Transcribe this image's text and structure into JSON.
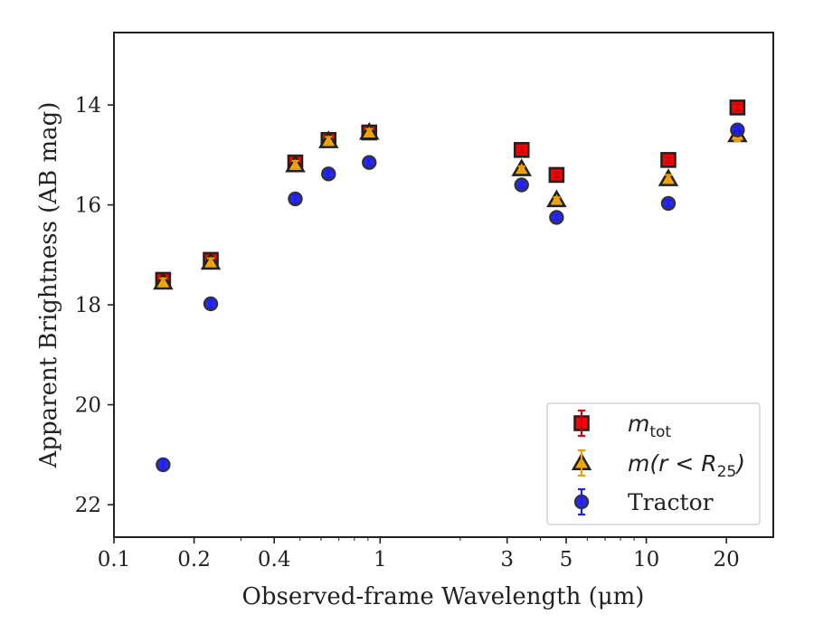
{
  "chart_data": {
    "type": "scatter",
    "xlabel": "Observed-frame Wavelength (μm)",
    "ylabel": "Apparent Brightness (AB mag)",
    "xscale": "log",
    "xlim": [
      0.1,
      30
    ],
    "ylim": [
      22.65,
      12.55
    ],
    "y_inverted": true,
    "x_ticks": [
      0.1,
      0.2,
      0.4,
      1,
      3,
      5,
      10,
      20
    ],
    "x_tick_labels": [
      "0.1",
      "0.2",
      "0.4",
      "1",
      "3",
      "5",
      "10",
      "20"
    ],
    "y_ticks": [
      14,
      16,
      18,
      20,
      22
    ],
    "y_tick_labels": [
      "14",
      "16",
      "18",
      "20",
      "22"
    ],
    "grid": false,
    "legend_position": "lower-right",
    "series": [
      {
        "name": "m_tot",
        "legend": {
          "main": "m",
          "sub": "tot"
        },
        "marker": "square",
        "color": "#ff0000",
        "edge_color": "#222222",
        "error_color": "#cc0000",
        "x": [
          0.153,
          0.231,
          0.48,
          0.64,
          0.91,
          3.4,
          4.6,
          12.1,
          22.0
        ],
        "y": [
          17.5,
          17.1,
          15.15,
          14.7,
          14.55,
          14.9,
          15.4,
          15.1,
          14.05
        ],
        "yerr": [
          0.08,
          0.08,
          0.08,
          0.08,
          0.07,
          0.05,
          0.05,
          0.05,
          0.07
        ]
      },
      {
        "name": "m(r < R_25)",
        "legend": {
          "main": "m(r < R",
          "sub": "25",
          "tail": ")"
        },
        "marker": "triangle",
        "color": "#ffa500",
        "edge_color": "#222222",
        "error_color": "#e5a000",
        "x": [
          0.153,
          0.231,
          0.48,
          0.64,
          0.91,
          3.4,
          4.6,
          12.1,
          22.0
        ],
        "y": [
          17.55,
          17.15,
          15.2,
          14.72,
          14.55,
          15.28,
          15.9,
          15.48,
          14.6
        ],
        "yerr": [
          0.08,
          0.08,
          0.08,
          0.08,
          0.07,
          0.05,
          0.05,
          0.08,
          0.12
        ]
      },
      {
        "name": "Tractor",
        "legend": {
          "main": "Tractor"
        },
        "marker": "circle",
        "color": "#1010ff",
        "edge_color": "#333333",
        "error_color": "#2020dd",
        "x": [
          0.153,
          0.231,
          0.48,
          0.64,
          0.91,
          3.4,
          4.6,
          12.1,
          22.0
        ],
        "y": [
          21.2,
          17.98,
          15.88,
          15.38,
          15.15,
          15.6,
          16.25,
          15.97,
          14.5
        ],
        "yerr": [
          0.1,
          0.08,
          0.08,
          0.07,
          0.07,
          0.05,
          0.05,
          0.06,
          0.08
        ]
      }
    ]
  }
}
